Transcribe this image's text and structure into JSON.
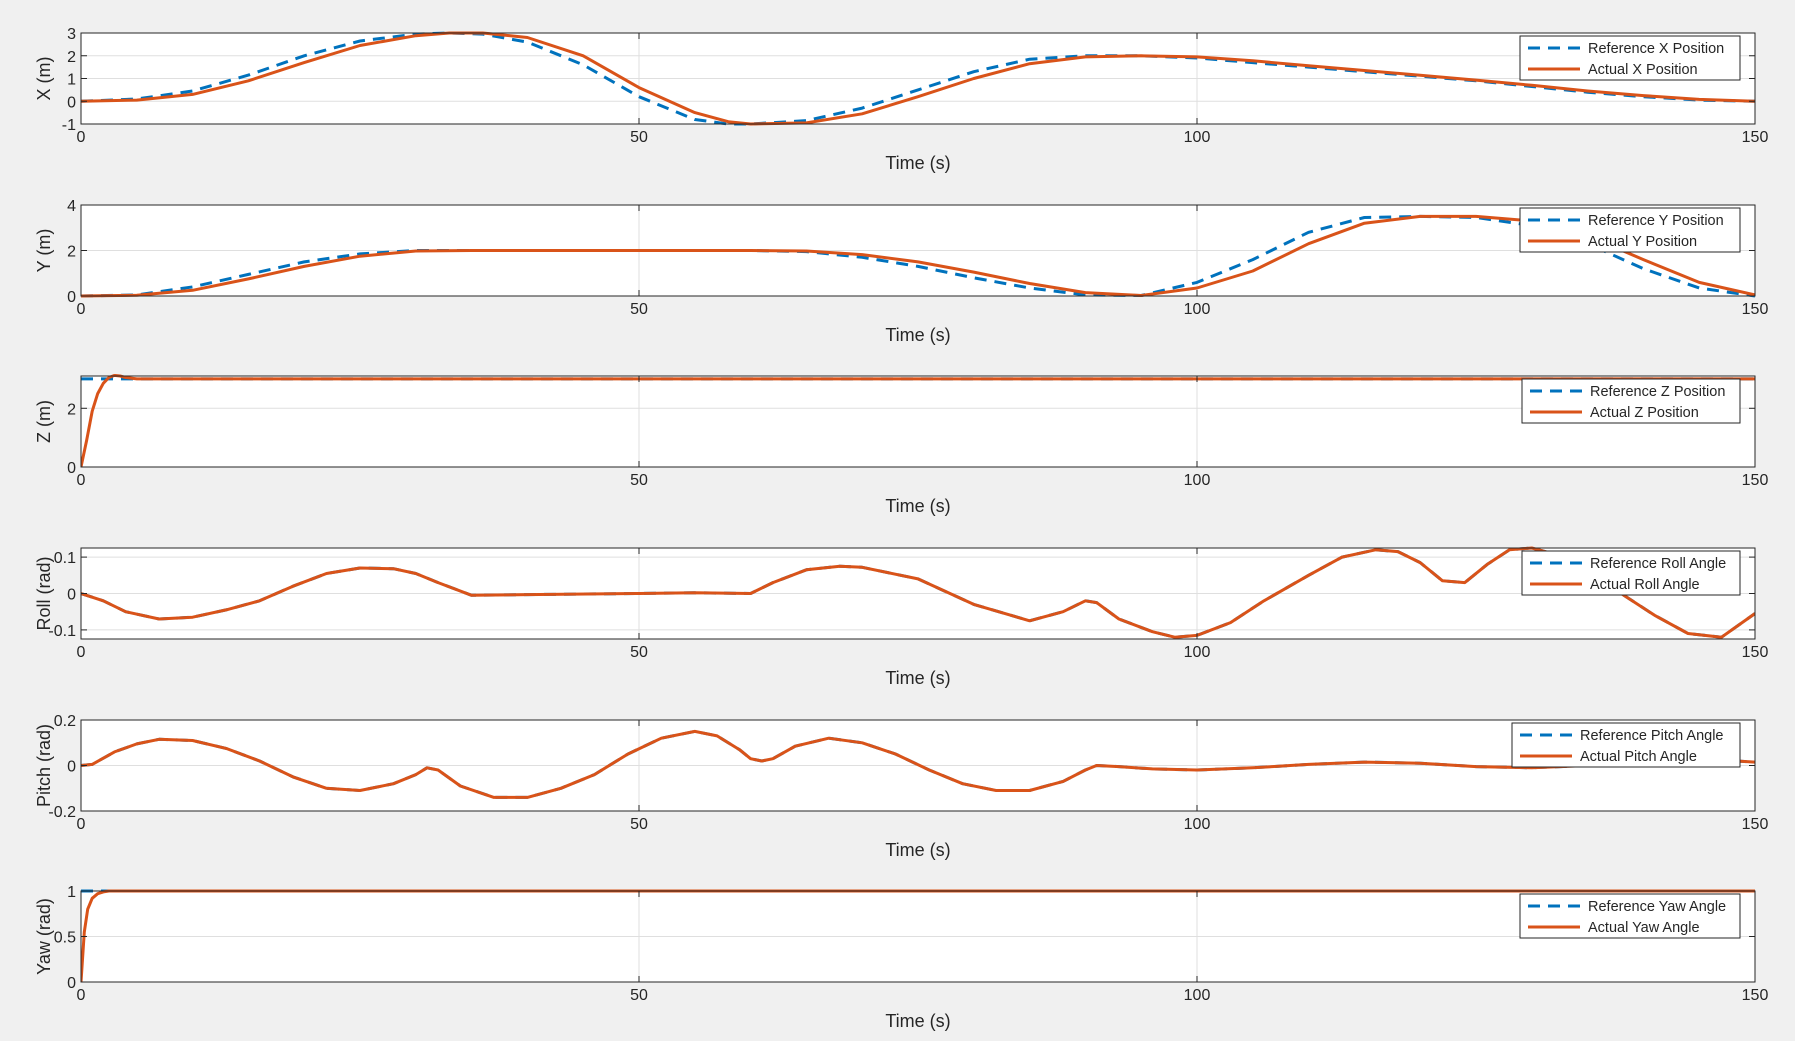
{
  "chart_data": [
    {
      "type": "line",
      "xlabel": "Time (s)",
      "ylabel": "X (m)",
      "xlim": [
        0,
        150
      ],
      "ylim": [
        -1,
        3
      ],
      "xticks": [
        0,
        50,
        100,
        150
      ],
      "yticks": [
        -1,
        0,
        1,
        2,
        3
      ],
      "grid": true,
      "legend": "top-right",
      "series": [
        {
          "name": "Reference X Position",
          "style": "dashed",
          "color": "#0072BD",
          "x": [
            0,
            5,
            10,
            15,
            20,
            25,
            30,
            33,
            36,
            40,
            45,
            50,
            55,
            58,
            60,
            65,
            70,
            75,
            80,
            85,
            90,
            95,
            100,
            105,
            110,
            115,
            120,
            125,
            130,
            135,
            140,
            145,
            150
          ],
          "y": [
            0,
            0.1,
            0.45,
            1.15,
            2.0,
            2.65,
            2.95,
            3.0,
            2.95,
            2.6,
            1.6,
            0.2,
            -0.8,
            -1.0,
            -1.0,
            -0.85,
            -0.3,
            0.5,
            1.3,
            1.85,
            2.0,
            2.0,
            1.9,
            1.7,
            1.5,
            1.3,
            1.1,
            0.9,
            0.65,
            0.4,
            0.2,
            0.05,
            0
          ]
        },
        {
          "name": "Actual X Position",
          "style": "solid",
          "color": "#D95319",
          "x": [
            0,
            5,
            10,
            15,
            20,
            25,
            30,
            33,
            36,
            40,
            45,
            50,
            55,
            58,
            60,
            65,
            70,
            75,
            80,
            85,
            90,
            95,
            100,
            105,
            110,
            115,
            120,
            125,
            130,
            135,
            140,
            145,
            150
          ],
          "y": [
            0,
            0.05,
            0.3,
            0.9,
            1.7,
            2.45,
            2.88,
            3.0,
            3.0,
            2.8,
            2.0,
            0.6,
            -0.5,
            -0.9,
            -1.0,
            -0.95,
            -0.55,
            0.2,
            1.0,
            1.65,
            1.95,
            2.0,
            1.95,
            1.78,
            1.56,
            1.35,
            1.14,
            0.93,
            0.7,
            0.45,
            0.25,
            0.08,
            0
          ]
        }
      ]
    },
    {
      "type": "line",
      "xlabel": "Time (s)",
      "ylabel": "Y (m)",
      "xlim": [
        0,
        150
      ],
      "ylim": [
        0,
        4
      ],
      "xticks": [
        0,
        50,
        100,
        150
      ],
      "yticks": [
        0,
        2,
        4
      ],
      "grid": true,
      "legend": "top-right",
      "series": [
        {
          "name": "Reference Y Position",
          "style": "dashed",
          "color": "#0072BD",
          "x": [
            0,
            5,
            10,
            15,
            20,
            25,
            30,
            35,
            40,
            50,
            60,
            65,
            70,
            75,
            80,
            85,
            90,
            95,
            100,
            105,
            110,
            115,
            120,
            125,
            130,
            135,
            140,
            145,
            150
          ],
          "y": [
            0,
            0.05,
            0.4,
            0.95,
            1.5,
            1.85,
            2.0,
            2.0,
            2.0,
            2.0,
            2.0,
            1.95,
            1.7,
            1.3,
            0.8,
            0.35,
            0.05,
            0.02,
            0.6,
            1.6,
            2.8,
            3.45,
            3.5,
            3.45,
            3.1,
            2.3,
            1.2,
            0.35,
            0
          ]
        },
        {
          "name": "Actual Y Position",
          "style": "solid",
          "color": "#D95319",
          "x": [
            0,
            5,
            10,
            15,
            20,
            25,
            30,
            35,
            40,
            50,
            60,
            65,
            70,
            75,
            80,
            85,
            90,
            95,
            100,
            105,
            110,
            115,
            120,
            125,
            130,
            135,
            140,
            145,
            150
          ],
          "y": [
            0,
            0.03,
            0.25,
            0.75,
            1.3,
            1.75,
            1.98,
            2.0,
            2.0,
            2.0,
            2.0,
            1.98,
            1.82,
            1.5,
            1.05,
            0.55,
            0.15,
            0.02,
            0.35,
            1.1,
            2.3,
            3.2,
            3.5,
            3.5,
            3.3,
            2.65,
            1.6,
            0.6,
            0.05
          ]
        }
      ]
    },
    {
      "type": "line",
      "xlabel": "Time (s)",
      "ylabel": "Z (m)",
      "xlim": [
        0,
        150
      ],
      "ylim": [
        0,
        3.1
      ],
      "xticks": [
        0,
        50,
        100,
        150
      ],
      "yticks": [
        0,
        2
      ],
      "grid": true,
      "legend": "top-right",
      "series": [
        {
          "name": "Reference Z Position",
          "style": "dashed",
          "color": "#0072BD",
          "x": [
            0,
            150
          ],
          "y": [
            3,
            3
          ]
        },
        {
          "name": "Actual Z Position",
          "style": "solid",
          "color": "#D95319",
          "x": [
            0,
            0.5,
            1,
            1.5,
            2,
            2.5,
            3,
            3.5,
            4,
            5,
            6,
            10,
            150
          ],
          "y": [
            0,
            0.9,
            1.9,
            2.5,
            2.85,
            3.05,
            3.12,
            3.1,
            3.05,
            3.0,
            3.0,
            3.0,
            3.0
          ]
        }
      ]
    },
    {
      "type": "line",
      "xlabel": "Time (s)",
      "ylabel": "Roll (rad)",
      "xlim": [
        0,
        150
      ],
      "ylim": [
        -0.125,
        0.125
      ],
      "xticks": [
        0,
        50,
        100,
        150
      ],
      "yticks": [
        -0.1,
        0,
        0.1
      ],
      "grid": true,
      "legend": "top-right",
      "series": [
        {
          "name": "Reference Roll Angle",
          "style": "dashed",
          "color": "#0072BD",
          "x": [
            0,
            2,
            4,
            7,
            10,
            13,
            16,
            19,
            22,
            25,
            28,
            30,
            32,
            35,
            40,
            50,
            55,
            60,
            62,
            65,
            68,
            70,
            75,
            80,
            85,
            88,
            90,
            91,
            93,
            96,
            98,
            100,
            103,
            106,
            110,
            113,
            116,
            118,
            120,
            122,
            124,
            126,
            128,
            130,
            133,
            137,
            141,
            144,
            147,
            150
          ],
          "y": [
            0,
            -0.02,
            -0.05,
            -0.07,
            -0.065,
            -0.045,
            -0.02,
            0.02,
            0.055,
            0.07,
            0.068,
            0.055,
            0.03,
            -0.005,
            -0.003,
            0,
            0.002,
            0,
            0.03,
            0.065,
            0.075,
            0.072,
            0.04,
            -0.03,
            -0.075,
            -0.05,
            -0.02,
            -0.025,
            -0.07,
            -0.105,
            -0.12,
            -0.115,
            -0.08,
            -0.02,
            0.05,
            0.1,
            0.12,
            0.115,
            0.085,
            0.035,
            0.03,
            0.08,
            0.12,
            0.125,
            0.1,
            0.02,
            -0.06,
            -0.11,
            -0.12,
            -0.055
          ]
        },
        {
          "name": "Actual Roll Angle",
          "style": "solid",
          "color": "#D95319",
          "x": [
            0,
            2,
            4,
            7,
            10,
            13,
            16,
            19,
            22,
            25,
            28,
            30,
            32,
            35,
            40,
            50,
            55,
            60,
            62,
            65,
            68,
            70,
            75,
            80,
            85,
            88,
            90,
            91,
            93,
            96,
            98,
            100,
            103,
            106,
            110,
            113,
            116,
            118,
            120,
            122,
            124,
            126,
            128,
            130,
            133,
            137,
            141,
            144,
            147,
            150
          ],
          "y": [
            0,
            -0.02,
            -0.05,
            -0.07,
            -0.065,
            -0.045,
            -0.02,
            0.02,
            0.055,
            0.07,
            0.068,
            0.055,
            0.03,
            -0.005,
            -0.003,
            0,
            0.002,
            0,
            0.03,
            0.065,
            0.075,
            0.072,
            0.04,
            -0.03,
            -0.075,
            -0.05,
            -0.02,
            -0.025,
            -0.07,
            -0.105,
            -0.12,
            -0.115,
            -0.08,
            -0.02,
            0.05,
            0.1,
            0.12,
            0.115,
            0.085,
            0.035,
            0.03,
            0.08,
            0.12,
            0.125,
            0.1,
            0.02,
            -0.06,
            -0.11,
            -0.12,
            -0.055
          ]
        }
      ]
    },
    {
      "type": "line",
      "xlabel": "Time (s)",
      "ylabel": "Pitch (rad)",
      "xlim": [
        0,
        150
      ],
      "ylim": [
        -0.2,
        0.2
      ],
      "xticks": [
        0,
        50,
        100,
        150
      ],
      "yticks": [
        -0.2,
        0,
        0.2
      ],
      "grid": true,
      "legend": "top-right",
      "series": [
        {
          "name": "Reference Pitch Angle",
          "style": "dashed",
          "color": "#0072BD",
          "x": [
            0,
            1,
            3,
            5,
            7,
            10,
            13,
            16,
            19,
            22,
            25,
            28,
            30,
            31,
            32,
            34,
            37,
            40,
            43,
            46,
            49,
            52,
            55,
            57,
            59,
            60,
            61,
            62,
            64,
            67,
            70,
            73,
            76,
            79,
            82,
            85,
            88,
            90,
            91,
            93,
            96,
            100,
            105,
            110,
            115,
            120,
            125,
            130,
            135,
            140,
            145,
            150
          ],
          "y": [
            0,
            0.005,
            0.06,
            0.095,
            0.115,
            0.11,
            0.075,
            0.02,
            -0.05,
            -0.1,
            -0.11,
            -0.08,
            -0.04,
            -0.01,
            -0.02,
            -0.09,
            -0.14,
            -0.14,
            -0.1,
            -0.04,
            0.05,
            0.12,
            0.15,
            0.13,
            0.07,
            0.03,
            0.02,
            0.03,
            0.085,
            0.12,
            0.1,
            0.05,
            -0.02,
            -0.08,
            -0.11,
            -0.11,
            -0.07,
            -0.02,
            0,
            -0.005,
            -0.015,
            -0.02,
            -0.01,
            0.005,
            0.015,
            0.01,
            -0.005,
            -0.01,
            0,
            0.015,
            0.03,
            0.015
          ]
        },
        {
          "name": "Actual Pitch Angle",
          "style": "solid",
          "color": "#D95319",
          "x": [
            0,
            1,
            3,
            5,
            7,
            10,
            13,
            16,
            19,
            22,
            25,
            28,
            30,
            31,
            32,
            34,
            37,
            40,
            43,
            46,
            49,
            52,
            55,
            57,
            59,
            60,
            61,
            62,
            64,
            67,
            70,
            73,
            76,
            79,
            82,
            85,
            88,
            90,
            91,
            93,
            96,
            100,
            105,
            110,
            115,
            120,
            125,
            130,
            135,
            140,
            145,
            150
          ],
          "y": [
            0,
            0.005,
            0.06,
            0.095,
            0.115,
            0.11,
            0.075,
            0.02,
            -0.05,
            -0.1,
            -0.11,
            -0.08,
            -0.04,
            -0.01,
            -0.02,
            -0.09,
            -0.14,
            -0.14,
            -0.1,
            -0.04,
            0.05,
            0.12,
            0.15,
            0.13,
            0.07,
            0.03,
            0.02,
            0.03,
            0.085,
            0.12,
            0.1,
            0.05,
            -0.02,
            -0.08,
            -0.11,
            -0.11,
            -0.07,
            -0.02,
            0,
            -0.005,
            -0.015,
            -0.02,
            -0.01,
            0.005,
            0.015,
            0.01,
            -0.005,
            -0.01,
            0,
            0.015,
            0.03,
            0.015
          ]
        }
      ]
    },
    {
      "type": "line",
      "xlabel": "Time (s)",
      "ylabel": "Yaw (rad)",
      "xlim": [
        0,
        150
      ],
      "ylim": [
        0,
        1
      ],
      "xticks": [
        0,
        50,
        100,
        150
      ],
      "yticks": [
        0,
        0.5,
        1
      ],
      "grid": true,
      "legend": "top-right",
      "series": [
        {
          "name": "Reference Yaw Angle",
          "style": "dashed",
          "color": "#0072BD",
          "x": [
            0,
            150
          ],
          "y": [
            1,
            1
          ]
        },
        {
          "name": "Actual Yaw Angle",
          "style": "solid",
          "color": "#D95319",
          "x": [
            0,
            0.3,
            0.6,
            1,
            1.5,
            2,
            2.5,
            3,
            4,
            150
          ],
          "y": [
            0,
            0.55,
            0.8,
            0.92,
            0.97,
            0.99,
            1.0,
            1.0,
            1.0,
            1.0
          ]
        }
      ]
    }
  ]
}
